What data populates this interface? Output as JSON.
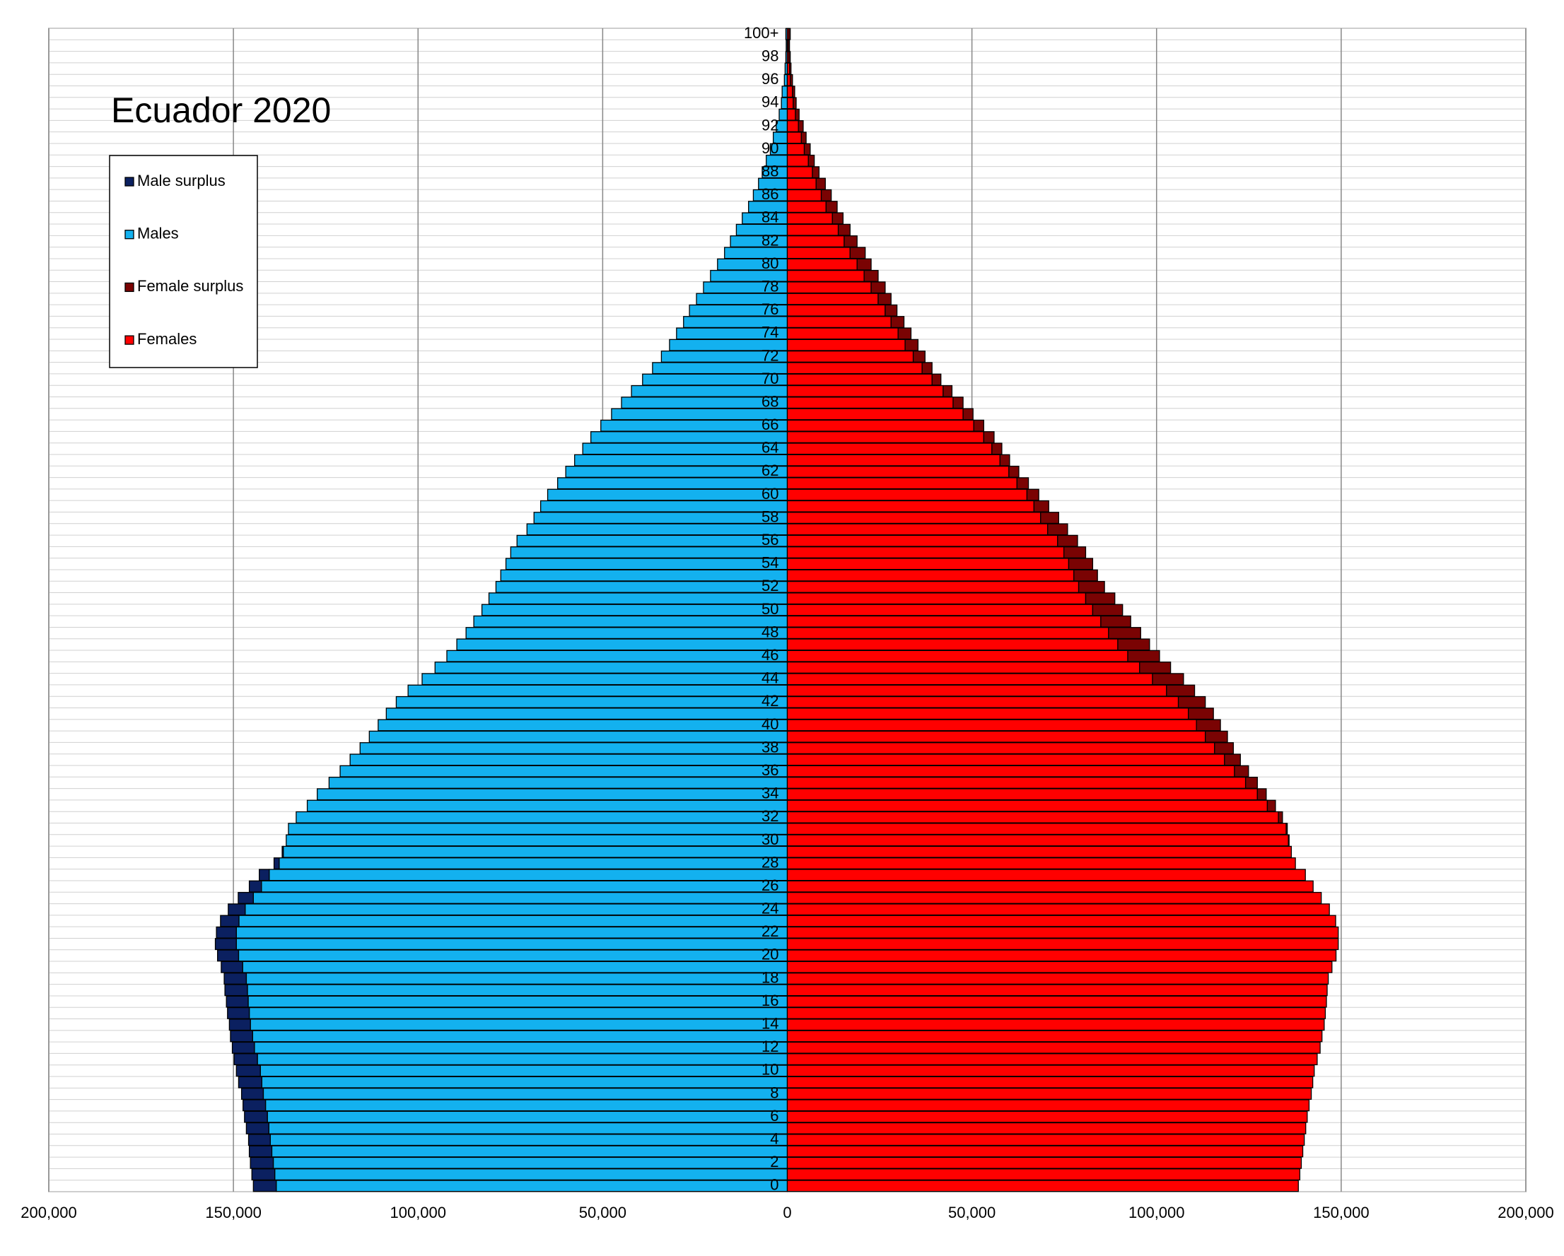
{
  "chart_data": {
    "type": "pyramid",
    "title": "Ecuador 2020",
    "categories": [
      "0",
      null,
      "2",
      null,
      "4",
      null,
      "6",
      null,
      "8",
      null,
      "10",
      null,
      "12",
      null,
      "14",
      null,
      "16",
      null,
      "18",
      null,
      "20",
      null,
      "22",
      null,
      "24",
      null,
      "26",
      null,
      "28",
      null,
      "30",
      null,
      "32",
      null,
      "34",
      null,
      "36",
      null,
      "38",
      null,
      "40",
      null,
      "42",
      null,
      "44",
      null,
      "46",
      null,
      "48",
      null,
      "50",
      null,
      "52",
      null,
      "54",
      null,
      "56",
      null,
      "58",
      null,
      "60",
      null,
      "62",
      null,
      "64",
      null,
      "66",
      null,
      "68",
      null,
      "70",
      null,
      "72",
      null,
      "74",
      null,
      "76",
      null,
      "78",
      null,
      "80",
      null,
      "82",
      null,
      "84",
      null,
      "86",
      null,
      "88",
      null,
      "90",
      null,
      "92",
      null,
      "94",
      null,
      "96",
      null,
      "98",
      null,
      "100+"
    ],
    "series": [
      {
        "name": "Male surplus",
        "color": "#0b2060",
        "values": [
          6200,
          6200,
          6200,
          6100,
          5900,
          6100,
          6200,
          6100,
          5900,
          6300,
          6500,
          6300,
          6000,
          6000,
          5700,
          5900,
          5900,
          6100,
          6000,
          5800,
          5700,
          5700,
          5400,
          5000,
          4600,
          4100,
          3300,
          2700,
          1400,
          300,
          0,
          0,
          0,
          0,
          0,
          0,
          0,
          0,
          0,
          0,
          0,
          0,
          0,
          0,
          0,
          0,
          0,
          0,
          0,
          0,
          0,
          0,
          0,
          0,
          0,
          0,
          0,
          0,
          0,
          0,
          0,
          0,
          0,
          0,
          0,
          0,
          0,
          0,
          0,
          0,
          0,
          0,
          0,
          0,
          0,
          0,
          0,
          0,
          0,
          0,
          0,
          0,
          0,
          0,
          0,
          0,
          0,
          0,
          0,
          0,
          0,
          0,
          0,
          0,
          0,
          0,
          0,
          0,
          0,
          0,
          0
        ]
      },
      {
        "name": "Males",
        "color": "#13b1ef",
        "values": [
          138400,
          138800,
          139200,
          139600,
          140000,
          140400,
          140800,
          141300,
          141900,
          142300,
          142700,
          143500,
          144300,
          144800,
          145400,
          145700,
          146000,
          146200,
          146500,
          147500,
          148600,
          149200,
          149200,
          148500,
          146800,
          144600,
          142400,
          140300,
          137600,
          136500,
          135700,
          135100,
          133000,
          130000,
          127300,
          124100,
          121100,
          118400,
          115700,
          113200,
          110800,
          108600,
          105900,
          102700,
          98900,
          95400,
          92200,
          89500,
          87000,
          84900,
          82700,
          80800,
          78900,
          77600,
          76200,
          74900,
          73200,
          70500,
          68600,
          66800,
          64900,
          62200,
          60000,
          57600,
          55400,
          53200,
          50500,
          47600,
          44900,
          42200,
          39200,
          36500,
          34100,
          31900,
          30000,
          28100,
          26500,
          24600,
          22700,
          20800,
          18900,
          17000,
          15400,
          13800,
          12200,
          10500,
          9200,
          7800,
          6800,
          5700,
          4600,
          3800,
          3000,
          2200,
          1600,
          1400,
          800,
          600,
          400,
          300,
          400
        ]
      },
      {
        "name": "Female surplus",
        "color": "#7a0303",
        "values": [
          0,
          0,
          0,
          0,
          0,
          0,
          0,
          0,
          0,
          0,
          0,
          0,
          0,
          0,
          0,
          0,
          0,
          0,
          0,
          0,
          0,
          0,
          0,
          0,
          0,
          0,
          0,
          0,
          0,
          0,
          200,
          300,
          1100,
          2200,
          2400,
          3200,
          3800,
          4300,
          5100,
          6000,
          6500,
          6800,
          7300,
          7600,
          8400,
          8400,
          8600,
          8600,
          8700,
          8100,
          8100,
          7900,
          7000,
          6400,
          6500,
          5900,
          5400,
          5400,
          4900,
          4000,
          3200,
          3100,
          2700,
          2600,
          2700,
          2800,
          2700,
          2700,
          2700,
          2400,
          2400,
          2700,
          3200,
          3500,
          3500,
          3500,
          3200,
          3500,
          3800,
          3800,
          3800,
          4100,
          3500,
          3200,
          2900,
          3000,
          2700,
          2500,
          1800,
          1600,
          1600,
          1300,
          1300,
          1000,
          800,
          600,
          600,
          400,
          400,
          300,
          400
        ]
      },
      {
        "name": "Females",
        "color": "#ff0000",
        "values": [
          138400,
          138800,
          139200,
          139600,
          140000,
          140400,
          140800,
          141300,
          141900,
          142300,
          142700,
          143500,
          144300,
          144800,
          145400,
          145700,
          146000,
          146200,
          146500,
          147500,
          148600,
          149200,
          149200,
          148500,
          146800,
          144600,
          142400,
          140300,
          137600,
          136500,
          135700,
          135100,
          133000,
          130000,
          127300,
          124100,
          121100,
          118400,
          115700,
          113200,
          110800,
          108600,
          105900,
          102700,
          98900,
          95400,
          92200,
          89500,
          87000,
          84900,
          82700,
          80800,
          78900,
          77600,
          76200,
          74900,
          73200,
          70500,
          68600,
          66800,
          64900,
          62200,
          60000,
          57600,
          55400,
          53200,
          50500,
          47600,
          44900,
          42200,
          39200,
          36500,
          34100,
          31900,
          30000,
          28100,
          26500,
          24600,
          22700,
          20800,
          18900,
          17000,
          15400,
          13800,
          12200,
          10500,
          9200,
          7800,
          6800,
          5700,
          4600,
          3800,
          3000,
          2200,
          1600,
          1400,
          800,
          600,
          400,
          300,
          400
        ]
      }
    ],
    "xlim": [
      -200000,
      200000
    ],
    "xticks": [
      {
        "value": -200000,
        "label": "200,000"
      },
      {
        "value": -150000,
        "label": "150,000"
      },
      {
        "value": -100000,
        "label": "100,000"
      },
      {
        "value": -50000,
        "label": "50,000"
      },
      0,
      {
        "value": 50000,
        "label": "50,000"
      },
      {
        "value": 100000,
        "label": "100,000"
      },
      {
        "value": 150000,
        "label": "150,000"
      },
      {
        "value": 200000,
        "label": "200,000"
      }
    ],
    "grid": true
  }
}
